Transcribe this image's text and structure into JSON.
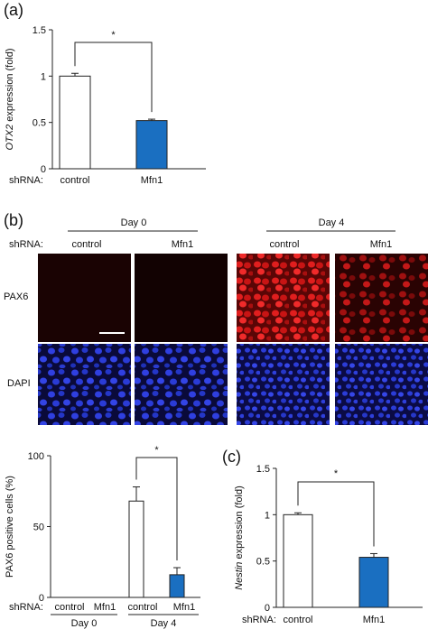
{
  "panels": {
    "a": "(a)",
    "b": "(b)",
    "c": "(c)"
  },
  "shrna_label": "shRNA:",
  "significance": "*",
  "colors": {
    "control": "#ffffff",
    "mfn1": "#1a6fc1",
    "axis": "#222222"
  },
  "micrographs": {
    "day_headers": [
      "Day 0",
      "Day 4"
    ],
    "column_labels": [
      "control",
      "Mfn1",
      "control",
      "Mfn1"
    ],
    "row_labels": [
      "PAX6",
      "DAPI"
    ]
  },
  "panel_b_x_groups": {
    "day_labels": [
      "Day 0",
      "Day 4"
    ],
    "condition_labels": [
      "control",
      "Mfn1",
      "control",
      "Mfn1"
    ]
  },
  "chart_data": [
    {
      "id": "a",
      "type": "bar",
      "ylabel_italic": "OTX2",
      "ylabel_rest": " expression (fold)",
      "categories": [
        "control",
        "Mfn1"
      ],
      "values": [
        1.0,
        0.52
      ],
      "errors": [
        0.03,
        0.015
      ],
      "ylim": [
        0,
        1.5
      ],
      "yticks": [
        "0",
        "0.5",
        "1",
        "1.5"
      ],
      "ytick_values": [
        0,
        0.5,
        1,
        1.5
      ],
      "bar_colors": [
        "#ffffff",
        "#1a6fc1"
      ]
    },
    {
      "id": "b",
      "type": "bar",
      "ylabel": "PAX6 positive cells (%)",
      "categories": [
        "Day 0 control",
        "Day 0 Mfn1",
        "Day 4 control",
        "Day 4 Mfn1"
      ],
      "values": [
        0,
        0,
        68,
        16
      ],
      "errors": [
        0,
        0,
        10,
        5
      ],
      "ylim": [
        0,
        100
      ],
      "yticks": [
        "0",
        "50",
        "100"
      ],
      "ytick_values": [
        0,
        50,
        100
      ],
      "bar_colors": [
        "#ffffff",
        "#1a6fc1",
        "#ffffff",
        "#1a6fc1"
      ]
    },
    {
      "id": "c",
      "type": "bar",
      "ylabel_italic": "Nestin",
      "ylabel_rest": " expression (fold)",
      "categories": [
        "control",
        "Mfn1"
      ],
      "values": [
        1.0,
        0.54
      ],
      "errors": [
        0.02,
        0.04
      ],
      "ylim": [
        0,
        1.5
      ],
      "yticks": [
        "0",
        "0.5",
        "1",
        "1.5"
      ],
      "ytick_values": [
        0,
        0.5,
        1,
        1.5
      ],
      "bar_colors": [
        "#ffffff",
        "#1a6fc1"
      ]
    }
  ]
}
